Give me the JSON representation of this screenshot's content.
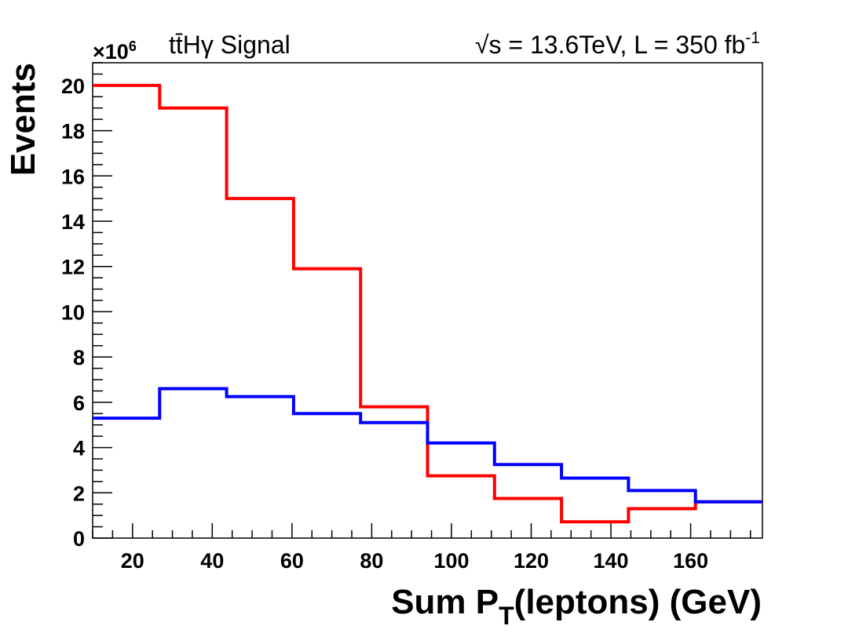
{
  "chart_data": {
    "type": "line",
    "drawstyle": "steps",
    "title_left": "tt̄Hγ Signal",
    "title_right_prefix": "√s = 13.6TeV, L = 350 fb",
    "title_right_sup": "-1",
    "xlabel_main": "Sum P",
    "xlabel_sub": "T",
    "xlabel_tail": "(leptons) (GeV)",
    "ylabel": "Events",
    "y_multiplier_prefix": "×10",
    "y_multiplier_exp": "6",
    "xlim": [
      10,
      178
    ],
    "ylim": [
      0,
      21
    ],
    "xticks": [
      20,
      40,
      60,
      80,
      100,
      120,
      140,
      160
    ],
    "xtick_labels": [
      "20",
      "40",
      "60",
      "80",
      "100",
      "120",
      "140",
      "160"
    ],
    "yticks": [
      0,
      2,
      4,
      6,
      8,
      10,
      12,
      14,
      16,
      18,
      20
    ],
    "ytick_labels": [
      "0",
      "2",
      "4",
      "6",
      "8",
      "10",
      "12",
      "14",
      "16",
      "18",
      "20"
    ],
    "bin_edges": [
      10,
      26.8,
      43.6,
      60.4,
      77.2,
      94.0,
      110.8,
      127.6,
      144.4,
      161.2,
      178
    ],
    "series": [
      {
        "name": "red",
        "color": "#ff0000",
        "values": [
          20.0,
          19.0,
          15.0,
          11.9,
          5.8,
          2.75,
          1.75,
          0.72,
          1.3,
          1.6
        ]
      },
      {
        "name": "blue",
        "color": "#0000ff",
        "values": [
          5.3,
          6.6,
          6.25,
          5.5,
          5.1,
          4.2,
          3.25,
          2.65,
          2.1,
          1.6
        ]
      }
    ]
  }
}
